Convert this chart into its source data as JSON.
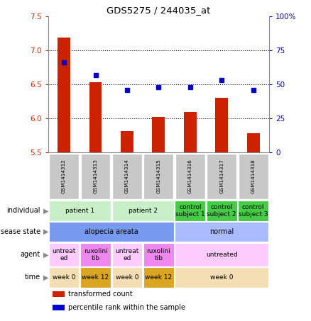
{
  "title": "GDS5275 / 244035_at",
  "samples": [
    "GSM1414312",
    "GSM1414313",
    "GSM1414314",
    "GSM1414315",
    "GSM1414316",
    "GSM1414317",
    "GSM1414318"
  ],
  "red_values": [
    7.18,
    6.53,
    5.82,
    6.02,
    6.1,
    6.3,
    5.78
  ],
  "blue_values": [
    66,
    57,
    46,
    48,
    48,
    53,
    46
  ],
  "ylim_left": [
    5.5,
    7.5
  ],
  "ylim_right": [
    0,
    100
  ],
  "yticks_left": [
    5.5,
    6.0,
    6.5,
    7.0,
    7.5
  ],
  "yticks_right": [
    0,
    25,
    50,
    75,
    100
  ],
  "ytick_labels_right": [
    "0",
    "25",
    "50",
    "75",
    "100%"
  ],
  "hgrid_lines": [
    6.0,
    6.5,
    7.0
  ],
  "bar_color": "#cc2200",
  "dot_color": "#0000cc",
  "bar_bottom": 5.5,
  "bar_width": 0.4,
  "dot_size": 4,
  "axis_color_left": "#cc2200",
  "axis_color_right": "#0000cc",
  "sample_box_color": "#c8c8c8",
  "table_rows": [
    {
      "label": "individual",
      "cells": [
        {
          "text": "patient 1",
          "span": 2,
          "color": "#c8f0c8"
        },
        {
          "text": "patient 2",
          "span": 2,
          "color": "#c8f0c8"
        },
        {
          "text": "control\nsubject 1",
          "span": 1,
          "color": "#44cc44"
        },
        {
          "text": "control\nsubject 2",
          "span": 1,
          "color": "#44cc44"
        },
        {
          "text": "control\nsubject 3",
          "span": 1,
          "color": "#44cc44"
        }
      ]
    },
    {
      "label": "disease state",
      "cells": [
        {
          "text": "alopecia areata",
          "span": 4,
          "color": "#7799ee"
        },
        {
          "text": "normal",
          "span": 3,
          "color": "#aabbff"
        }
      ]
    },
    {
      "label": "agent",
      "cells": [
        {
          "text": "untreat\ned",
          "span": 1,
          "color": "#ffccff"
        },
        {
          "text": "ruxolini\ntib",
          "span": 1,
          "color": "#ee88ee"
        },
        {
          "text": "untreat\ned",
          "span": 1,
          "color": "#ffccff"
        },
        {
          "text": "ruxolini\ntib",
          "span": 1,
          "color": "#ee88ee"
        },
        {
          "text": "untreated",
          "span": 3,
          "color": "#ffccff"
        }
      ]
    },
    {
      "label": "time",
      "cells": [
        {
          "text": "week 0",
          "span": 1,
          "color": "#f5deb3"
        },
        {
          "text": "week 12",
          "span": 1,
          "color": "#daa520"
        },
        {
          "text": "week 0",
          "span": 1,
          "color": "#f5deb3"
        },
        {
          "text": "week 12",
          "span": 1,
          "color": "#daa520"
        },
        {
          "text": "week 0",
          "span": 3,
          "color": "#f5deb3"
        }
      ]
    }
  ],
  "legend": [
    {
      "color": "#cc2200",
      "label": "transformed count"
    },
    {
      "color": "#0000cc",
      "label": "percentile rank within the sample"
    }
  ]
}
